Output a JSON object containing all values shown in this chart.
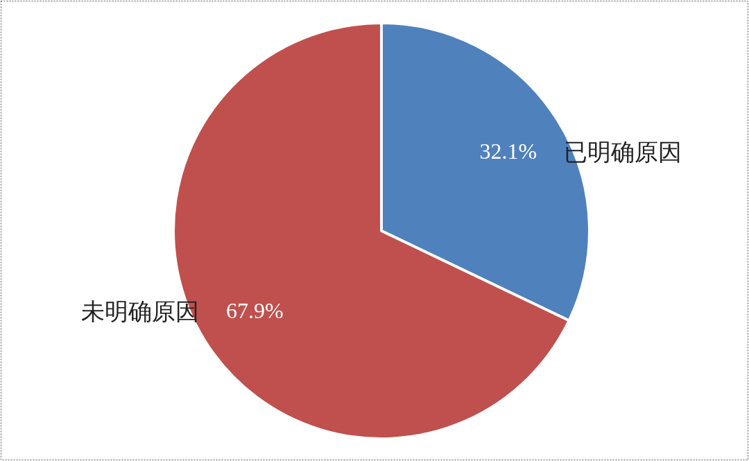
{
  "chart_data": {
    "type": "pie",
    "categories": [
      "已明确原因",
      "未明确原因"
    ],
    "values": [
      32.1,
      67.9
    ],
    "colors": [
      "#4f81bd",
      "#c0504d"
    ],
    "value_labels": [
      "32.1%",
      "67.9%"
    ]
  }
}
